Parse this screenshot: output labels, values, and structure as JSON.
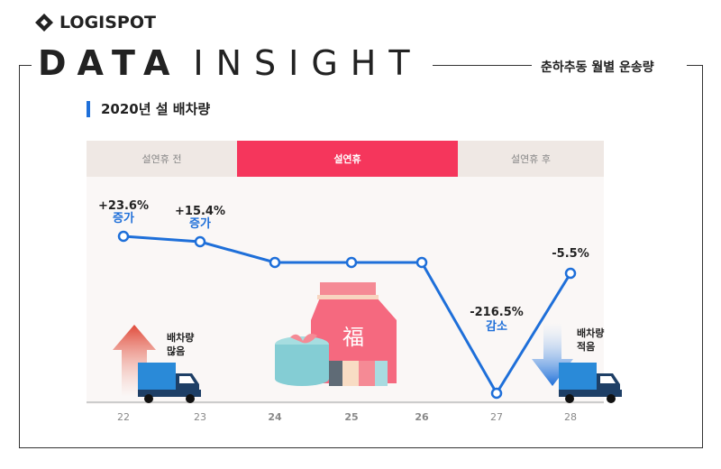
{
  "logo": {
    "text": "LOGISPOT"
  },
  "header": {
    "brand_bold": "DATA",
    "brand_light": "INSIGHT",
    "subtitle": "춘하추동 월별 운송량"
  },
  "chart_title": "2020년 설 배차량",
  "periods": [
    {
      "label": "설연휴 전",
      "active": false
    },
    {
      "label": "설연휴",
      "active": true
    },
    {
      "label": "설연휴 후",
      "active": false
    }
  ],
  "colors": {
    "line": "#1e6fd9",
    "holiday": "#f5365c",
    "period_bg": "#efe8e4",
    "panel_bg": "#faf7f6"
  },
  "legend": {
    "up": "배차량\n많음",
    "down": "배차량\n적음"
  },
  "chart_data": {
    "type": "line",
    "categories": [
      "22",
      "23",
      "24",
      "25",
      "26",
      "27",
      "28"
    ],
    "holiday_categories": [
      "24",
      "25",
      "26"
    ],
    "annotations": [
      {
        "x": "22",
        "value": "+23.6%",
        "note": "증가"
      },
      {
        "x": "23",
        "value": "+15.4%",
        "note": "증가"
      },
      {
        "x": "27",
        "value": "-216.5%",
        "note": "감소"
      },
      {
        "x": "28",
        "value": "-5.5%",
        "note": ""
      }
    ],
    "grid": false
  }
}
